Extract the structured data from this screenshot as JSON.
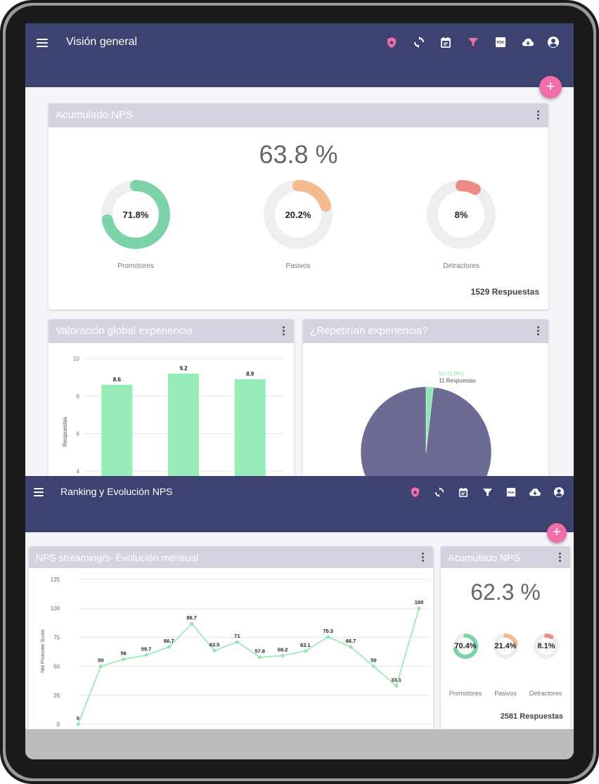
{
  "top": {
    "title": "Visión general",
    "nps_card": {
      "title": "Acumulado NPS",
      "score": "63.8 %",
      "donuts": [
        {
          "label": "Promotores",
          "value": "71.8%",
          "fraction": 0.718,
          "color": "#7bd3a7"
        },
        {
          "label": "Pasivos",
          "value": "20.2%",
          "fraction": 0.202,
          "color": "#f5bb8e"
        },
        {
          "label": "Detractores",
          "value": "8%",
          "fraction": 0.08,
          "color": "#ec8c86"
        }
      ],
      "responses_count": "1529",
      "responses_label": "Respuestas"
    },
    "bar_card": {
      "title": "Valoración global experiencia"
    },
    "pie_card": {
      "title": "¿Repetirían experiencia?",
      "label_no": "No (1.8%)",
      "label_no_count": "11 Respuestas"
    }
  },
  "bottom": {
    "title": "Ranking y Evolución NPS",
    "line_card": {
      "title": "NPS streaming/s- Evolución mensual"
    },
    "nps_card": {
      "title": "Acumulado NPS",
      "score": "62.3 %",
      "donuts": [
        {
          "label": "Promotores",
          "value": "70.4%",
          "fraction": 0.704,
          "color": "#7bd3a7"
        },
        {
          "label": "Pasivos",
          "value": "21.4%",
          "fraction": 0.214,
          "color": "#f5bb8e"
        },
        {
          "label": "Detractores",
          "value": "8.1%",
          "fraction": 0.081,
          "color": "#ec8c86"
        }
      ],
      "responses_count": "2581",
      "responses_label": "Respuestas"
    }
  },
  "colors": {
    "appbar": "#3e4270",
    "accent_pink": "#f06eaa",
    "bar_green": "#96ecb8",
    "pie_purple": "#6b6b96",
    "line_green": "#8ee6b0"
  },
  "icons": [
    "menu-icon",
    "shield-star-icon",
    "sync-icon",
    "calendar-icon",
    "filter-icon",
    "pdf-icon",
    "cloud-download-icon",
    "account-icon"
  ],
  "chart_data": [
    {
      "type": "bar",
      "categories": [
        "",
        "",
        ""
      ],
      "values": [
        8.6,
        9.2,
        8.9
      ],
      "ylabel": "Respuestas",
      "ylim": [
        4,
        10
      ],
      "yticks": [
        10,
        8,
        6,
        4
      ],
      "grid": true
    },
    {
      "type": "pie",
      "slices": [
        {
          "label": "No (1.8%)",
          "value": 1.8,
          "color": "#8ee6b0"
        },
        {
          "label": "",
          "value": 98.2,
          "color": "#6b6b96"
        }
      ]
    },
    {
      "type": "line",
      "ylabel": "Net Promoter Score",
      "ylim": [
        0,
        125
      ],
      "yticks": [
        125,
        100,
        75,
        50,
        25,
        0
      ],
      "grid": true,
      "values": [
        0,
        50,
        56,
        59.7,
        66.7,
        86.7,
        63.5,
        71,
        57.8,
        59.2,
        63.1,
        75.3,
        66.7,
        50,
        33.1,
        100
      ]
    }
  ]
}
